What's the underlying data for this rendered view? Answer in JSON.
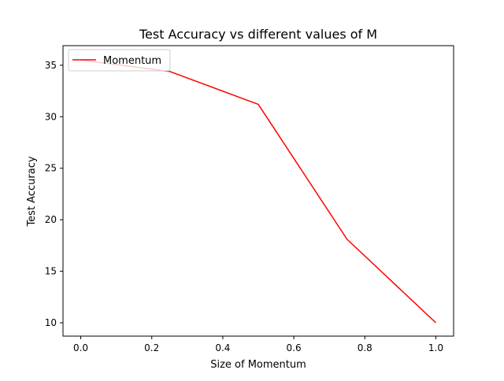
{
  "chart_data": {
    "type": "line",
    "title": "Test Accuracy vs different values of M",
    "xlabel": "Size of Momentum",
    "ylabel": "Test Accuracy",
    "xlim": [
      -0.05,
      1.05
    ],
    "ylim": [
      8.7,
      36.9
    ],
    "xticks": [
      0.0,
      0.2,
      0.4,
      0.6,
      0.8,
      1.0
    ],
    "xtick_labels": [
      "0.0",
      "0.2",
      "0.4",
      "0.6",
      "0.8",
      "1.0"
    ],
    "yticks": [
      10,
      15,
      20,
      25,
      30,
      35
    ],
    "ytick_labels": [
      "10",
      "15",
      "20",
      "25",
      "30",
      "35"
    ],
    "grid": false,
    "legend_position": "top-left",
    "series": [
      {
        "name": "Momentum",
        "color": "#ff0000",
        "x": [
          0.0,
          0.25,
          0.5,
          0.75,
          1.0
        ],
        "y": [
          35.5,
          34.4,
          31.2,
          18.1,
          10.0
        ]
      }
    ]
  }
}
